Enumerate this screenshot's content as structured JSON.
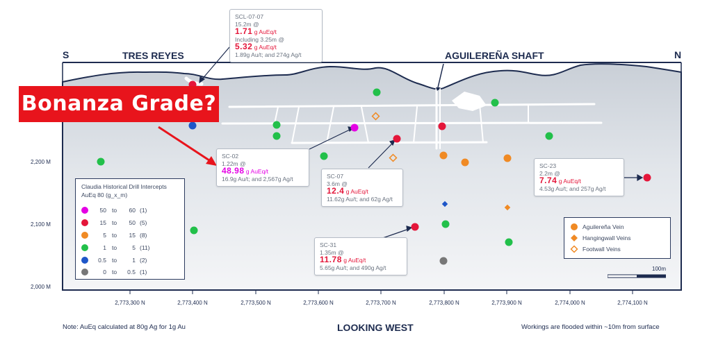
{
  "headers": {
    "south": "S",
    "north": "N",
    "tres_reyes": "TRES REYES",
    "shaft": "AGUILEREÑA SHAFT"
  },
  "y_axis": [
    "2,200 M",
    "2,100 M",
    "2,000 M"
  ],
  "x_axis": [
    "2,773,300 N",
    "2,773,400 N",
    "2,773,500 N",
    "2,773,600 N",
    "2,773,700 N",
    "2,773,800 N",
    "2,773,900 N",
    "2,774,000 N",
    "2,774,100 N"
  ],
  "callout": "Bonanza Grade?",
  "boxes": {
    "scl": {
      "name": "SCL-07-07",
      "len": "15.2m @",
      "grade": "1.71",
      "unit": "g AuEq/t",
      "incl": "Including 3.25m @",
      "grade2": "5.32",
      "unit2": "g AuEq/t",
      "detail": "1.89g Au/t; and 274g Ag/t"
    },
    "sc02": {
      "name": "SC-02",
      "len": "1.22m @",
      "grade": "48.98",
      "unit": "g AuEq/t",
      "detail": "16.9g Au/t; and 2,567g Ag/t"
    },
    "sc07": {
      "name": "SC-07",
      "len": "3.6m @",
      "grade": "12.4",
      "unit": "g AuEq/t",
      "detail": "11.62g Au/t; and 62g Ag/t"
    },
    "sc31": {
      "name": "SC-31",
      "len": "1.35m @",
      "grade": "11.78",
      "unit": "g AuEq/t",
      "detail": "5.65g Au/t; and 490g Ag/t"
    },
    "sc23": {
      "name": "SC-23",
      "len": "2.2m @",
      "grade": "7.74",
      "unit": "g AuEq/t",
      "detail": "4.53g Au/t; and 257g Ag/t"
    }
  },
  "legend": {
    "title": "Claudia Historical Drill Intercepts",
    "subtitle": "AuEq 80 (g_x_m)",
    "to": "to",
    "rows": [
      {
        "lo": "50",
        "hi": "60",
        "count": "(1)",
        "color": "#e400e4"
      },
      {
        "lo": "15",
        "hi": "50",
        "count": "(5)",
        "color": "#e4163a"
      },
      {
        "lo": "5",
        "hi": "15",
        "count": "(8)",
        "color": "#f08a24"
      },
      {
        "lo": "1",
        "hi": "5",
        "count": "(11)",
        "color": "#22c04a"
      },
      {
        "lo": "0.5",
        "hi": "1",
        "count": "(2)",
        "color": "#1e56c8"
      },
      {
        "lo": "0",
        "hi": "0.5",
        "count": "(1)",
        "color": "#777777"
      }
    ]
  },
  "vein_legend": [
    {
      "label": "Aguilereña Vein",
      "symbol": "circle"
    },
    {
      "label": "Hangingwall Veins",
      "symbol": "diamond"
    },
    {
      "label": "Footwall Veins",
      "symbol": "diamond-open"
    }
  ],
  "scale": "100m",
  "footer": {
    "note": "Note: AuEq calculated at 80g Ag for 1g Au",
    "view": "LOOKING WEST",
    "flood": "Workings are flooded within ~10m from surface"
  },
  "colors": {
    "navy": "#1d2b4f",
    "magenta": "#e400e4",
    "red": "#e4163a",
    "orange": "#f08a24",
    "green": "#22c04a",
    "blue": "#1e56c8",
    "gray": "#777777"
  }
}
